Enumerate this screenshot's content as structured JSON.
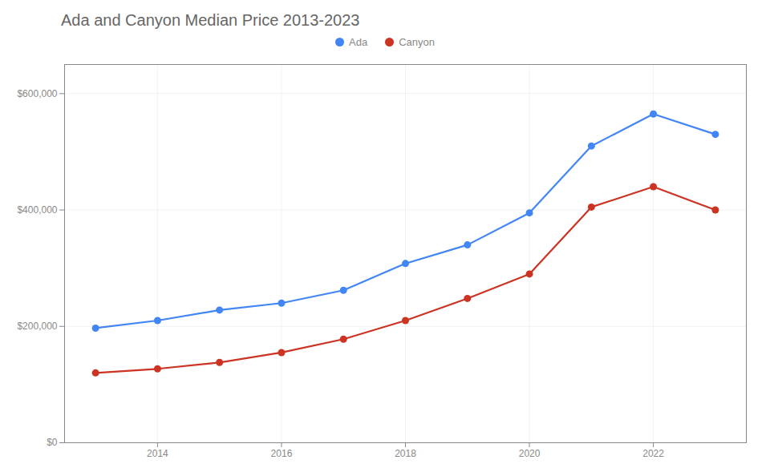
{
  "chart_data": {
    "type": "line",
    "title": "Ada and Canyon Median Price 2013-2023",
    "x": [
      2013,
      2014,
      2015,
      2016,
      2017,
      2018,
      2019,
      2020,
      2021,
      2022,
      2023
    ],
    "series": [
      {
        "name": "Ada",
        "color": "#4285F4",
        "values": [
          197000,
          210000,
          228000,
          240000,
          262000,
          308000,
          340000,
          395000,
          510000,
          565000,
          530000
        ]
      },
      {
        "name": "Canyon",
        "color": "#CC3322",
        "values": [
          120000,
          127000,
          138000,
          155000,
          178000,
          210000,
          248000,
          290000,
          405000,
          440000,
          400000
        ]
      }
    ],
    "xlim": [
      2012.5,
      2023.5
    ],
    "xticks": [
      2014,
      2016,
      2018,
      2020,
      2022
    ],
    "ylim": [
      0,
      650000
    ],
    "yticks": [
      {
        "value": 0,
        "label": "$0"
      },
      {
        "value": 200000,
        "label": "$200,000"
      },
      {
        "value": 400000,
        "label": "$400,000"
      },
      {
        "value": 600000,
        "label": "$600,000"
      }
    ],
    "grid": true,
    "legend": "top",
    "marker": "circle"
  }
}
